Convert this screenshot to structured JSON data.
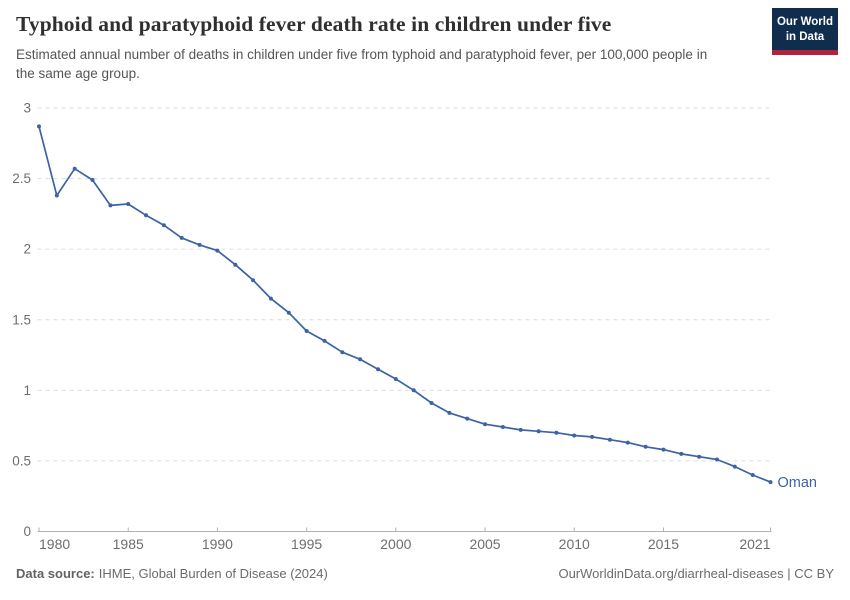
{
  "header": {
    "title": "Typhoid and paratyphoid fever death rate in children under five",
    "subtitle": "Estimated annual number of deaths in children under five from typhoid and paratyphoid fever, per 100,000 people in the same age group.",
    "logo": {
      "line1": "Our World",
      "line2": "in Data",
      "bg_color": "#102d4e",
      "accent_color": "#b0233d"
    }
  },
  "chart_data": {
    "type": "line",
    "title": "Typhoid and paratyphoid fever death rate in children under five",
    "xlabel": "",
    "ylabel": "",
    "x": [
      1980,
      1981,
      1982,
      1983,
      1984,
      1985,
      1986,
      1987,
      1988,
      1989,
      1990,
      1991,
      1992,
      1993,
      1994,
      1995,
      1996,
      1997,
      1998,
      1999,
      2000,
      2001,
      2002,
      2003,
      2004,
      2005,
      2006,
      2007,
      2008,
      2009,
      2010,
      2011,
      2012,
      2013,
      2014,
      2015,
      2016,
      2017,
      2018,
      2019,
      2020,
      2021
    ],
    "series": [
      {
        "name": "Oman",
        "color": "#3d63a3",
        "values": [
          2.87,
          2.38,
          2.57,
          2.49,
          2.31,
          2.32,
          2.24,
          2.17,
          2.08,
          2.03,
          1.99,
          1.89,
          1.78,
          1.65,
          1.55,
          1.42,
          1.35,
          1.27,
          1.22,
          1.15,
          1.08,
          1.0,
          0.91,
          0.84,
          0.8,
          0.76,
          0.74,
          0.72,
          0.71,
          0.7,
          0.68,
          0.67,
          0.65,
          0.63,
          0.6,
          0.58,
          0.55,
          0.53,
          0.51,
          0.46,
          0.4,
          0.35
        ]
      }
    ],
    "x_ticks": [
      1980,
      1985,
      1990,
      1995,
      2000,
      2005,
      2010,
      2015,
      2021
    ],
    "y_ticks": [
      0,
      0.5,
      1,
      1.5,
      2,
      2.5,
      3
    ],
    "xlim": [
      1980,
      2021
    ],
    "ylim": [
      0,
      3
    ],
    "grid": "horizontal-dashed",
    "legend": "end-of-line-label",
    "colors": {
      "grid": "#dcdcdc",
      "axis": "#b3b3b3",
      "tick_label": "#6e6e6e"
    }
  },
  "footer": {
    "source_label": "Data source:",
    "source": "IHME, Global Burden of Disease (2024)",
    "license": "OurWorldinData.org/diarrheal-diseases | CC BY"
  }
}
